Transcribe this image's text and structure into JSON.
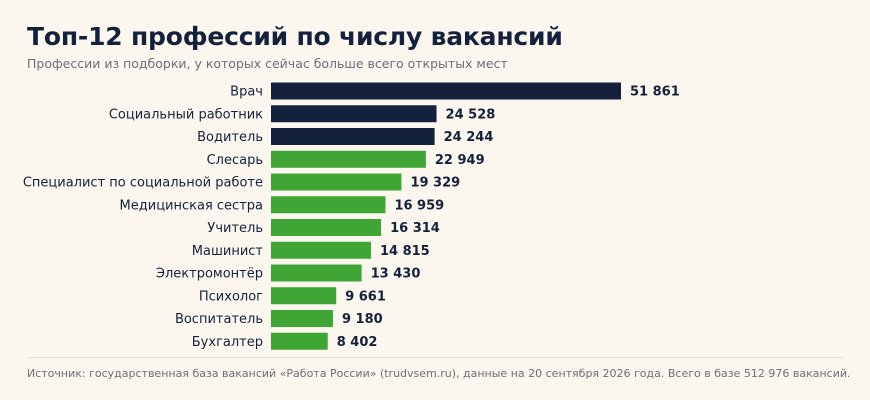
{
  "header": {
    "title": "Топ-12 профессий по числу вакансий",
    "subtitle": "Профессии из подборки, у которых сейчас больше всего открытых мест"
  },
  "footer": {
    "source": "Источник: государственная база вакансий «Работа России» (trudvsem.ru), данные на 20 сентября 2026 года. Всего в базе 512 976 вакансий."
  },
  "colors": {
    "highlight": "#14213d",
    "default": "#3fa535",
    "text": "#14213d",
    "background": "#fbf7ee"
  },
  "chart_data": {
    "type": "bar",
    "orientation": "horizontal",
    "categories": [
      "Врач",
      "Социальный работник",
      "Водитель",
      "Слесарь",
      "Специалист по социальной работе",
      "Медицинская сестра",
      "Учитель",
      "Машинист",
      "Электромонтёр",
      "Психолог",
      "Воспитатель",
      "Бухгалтер"
    ],
    "values": [
      51861,
      24528,
      24244,
      22949,
      19329,
      16959,
      16314,
      14815,
      13430,
      9661,
      9180,
      8402
    ],
    "value_labels": [
      "51 861",
      "24 528",
      "24 244",
      "22 949",
      "19 329",
      "16 959",
      "16 314",
      "14 815",
      "13 430",
      "9 661",
      "9 180",
      "8 402"
    ],
    "highlighted_count": 3,
    "title": "Топ-12 профессий по числу вакансий",
    "xlabel": "",
    "ylabel": "",
    "grid": false,
    "legend": "none"
  }
}
